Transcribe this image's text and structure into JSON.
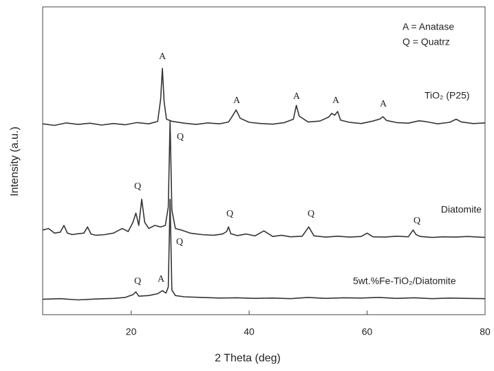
{
  "chart_data": {
    "type": "line",
    "x_label": "2 Theta (deg)",
    "y_label": "Intensity (a.u.)",
    "legend_notes": [
      "A = Anatase",
      "Q = Quatrz"
    ],
    "annotations": [
      "A",
      "A",
      "A",
      "A",
      "A",
      "Q",
      "Q",
      "Q",
      "Q",
      "Q",
      "Q",
      "Q",
      "A"
    ],
    "xlim": [
      5,
      80
    ],
    "xticks": [
      20,
      40,
      60,
      80
    ],
    "ylim": [
      0,
      100
    ],
    "series": [
      {
        "name": "TiO₂ (P25)",
        "color": "#333333",
        "x": [
          5,
          7,
          9,
          11,
          13,
          15,
          17,
          19,
          21,
          23,
          24.5,
          25,
          25.3,
          25.6,
          26,
          27,
          29,
          31,
          33,
          35,
          36.5,
          37,
          37.8,
          38.5,
          40,
          42,
          44,
          46,
          47.5,
          48,
          48.5,
          50,
          52,
          53.5,
          54,
          54.5,
          55,
          55.5,
          57,
          59,
          61,
          62.2,
          62.7,
          63.3,
          65,
          67,
          68.8,
          70,
          72,
          74,
          75.1,
          76,
          78,
          80
        ],
        "values": [
          62,
          61.5,
          62.3,
          61.8,
          62.2,
          61.6,
          62.1,
          61.7,
          62.4,
          62,
          62.8,
          70,
          80,
          69,
          63.5,
          62.8,
          62.2,
          61.8,
          62.3,
          62,
          62.6,
          64,
          66.5,
          63.8,
          62.5,
          62.1,
          61.9,
          62.4,
          63.5,
          68,
          64.5,
          62.6,
          62.9,
          64.2,
          65.4,
          64.8,
          66,
          63.2,
          62.5,
          62.1,
          62.9,
          63.6,
          64.3,
          63.1,
          62.4,
          62.2,
          63,
          62.7,
          62,
          62.5,
          63.5,
          62.6,
          62.1,
          62.3
        ]
      },
      {
        "name": "Diatomite",
        "color": "#333333",
        "x": [
          5,
          6,
          7,
          8,
          8.6,
          9.2,
          10,
          11,
          12,
          12.6,
          13.2,
          14,
          15.5,
          17,
          18.5,
          19.5,
          20.3,
          20.8,
          21.3,
          21.8,
          22.3,
          23,
          24,
          25,
          25.8,
          26.3,
          26.6,
          26.9,
          27.5,
          28.5,
          30,
          32,
          34,
          35.5,
          36.2,
          36.5,
          36.9,
          38,
          39.5,
          41,
          42.5,
          44,
          45.5,
          47,
          49,
          50.1,
          51,
          53,
          55,
          57,
          59,
          60,
          61,
          63,
          65,
          67,
          67.8,
          68.3,
          69,
          71,
          73,
          75,
          77,
          80
        ],
        "values": [
          27.5,
          28,
          26.5,
          26.8,
          29,
          26.5,
          26,
          26.3,
          26.5,
          28.5,
          26.2,
          25.8,
          26,
          26.5,
          28,
          27,
          30,
          33,
          29,
          37.5,
          30,
          28,
          29,
          28.5,
          29,
          35,
          63,
          34,
          28,
          27.5,
          26.5,
          26,
          25.8,
          26.2,
          27,
          28.5,
          26.3,
          25.7,
          26.2,
          25.6,
          27.2,
          25.4,
          25.8,
          25.3,
          25.5,
          28.5,
          25.6,
          25.2,
          25.5,
          25.2,
          25.4,
          26.5,
          25.3,
          25.2,
          25.5,
          25.3,
          27.5,
          26,
          25.4,
          25.1,
          25.3,
          25.2,
          25.4,
          25.1
        ]
      },
      {
        "name": "5wt.%Fe-TiO₂/Diatomite",
        "color": "#333333",
        "x": [
          5,
          8,
          11,
          14,
          17,
          19,
          20.3,
          20.8,
          21.3,
          23,
          24.5,
          25.3,
          25.9,
          26.3,
          26.6,
          26.9,
          27.5,
          29,
          32,
          35,
          38,
          41,
          44,
          47,
          50,
          53,
          56,
          59,
          62,
          65,
          68,
          71,
          74,
          77,
          80
        ],
        "values": [
          5,
          5.2,
          4.8,
          5.1,
          5.3,
          5.6,
          6.5,
          7.4,
          6,
          6.2,
          6.8,
          7.8,
          7,
          9,
          37.5,
          8,
          6.2,
          5.8,
          5.6,
          5.4,
          5.5,
          5.3,
          5.4,
          5.2,
          5.6,
          5.3,
          5.5,
          5.4,
          5.6,
          5.3,
          5.5,
          5.2,
          5.4,
          5.3,
          5.2
        ]
      }
    ]
  }
}
